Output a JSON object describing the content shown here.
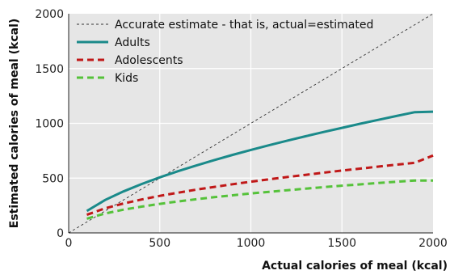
{
  "chart_data": {
    "type": "line",
    "xlabel": "Actual calories of meal (kcal)",
    "ylabel": "Estimated calories of meal (kcal)",
    "xlim": [
      0,
      2000
    ],
    "ylim": [
      0,
      2000
    ],
    "xticks": [
      0,
      500,
      1000,
      1500,
      2000
    ],
    "yticks": [
      0,
      500,
      1000,
      1500,
      2000
    ],
    "grid": true,
    "legend_position": "top-left",
    "background_color": "#e6e6e6",
    "series": [
      {
        "name": "Accurate estimate - that is, actual=estimated",
        "color": "#333333",
        "style": "dashed-thin",
        "x": [
          0,
          2000
        ],
        "y": [
          0,
          2000
        ]
      },
      {
        "name": "Adults",
        "color": "#1a8a8a",
        "style": "solid",
        "x": [
          100,
          200,
          300,
          400,
          500,
          600,
          700,
          800,
          900,
          1000,
          1100,
          1200,
          1300,
          1400,
          1500,
          1600,
          1700,
          1800,
          1900,
          2000
        ],
        "y": [
          200,
          300,
          378,
          446,
          507,
          563,
          615,
          665,
          712,
          757,
          800,
          842,
          882,
          921,
          959,
          996,
          1032,
          1067,
          1102,
          1106
        ]
      },
      {
        "name": "Adolescents",
        "color": "#c01818",
        "style": "dashed",
        "x": [
          100,
          200,
          300,
          400,
          500,
          600,
          700,
          800,
          900,
          1000,
          1100,
          1200,
          1300,
          1400,
          1500,
          1600,
          1700,
          1800,
          1900,
          2000
        ],
        "y": [
          165,
          224,
          268,
          305,
          338,
          367,
          395,
          420,
          444,
          467,
          489,
          510,
          530,
          550,
          569,
          587,
          605,
          623,
          640,
          706
        ]
      },
      {
        "name": "Kids",
        "color": "#55c23a",
        "style": "dashed",
        "x": [
          100,
          200,
          300,
          400,
          500,
          600,
          700,
          800,
          900,
          1000,
          1100,
          1200,
          1300,
          1400,
          1500,
          1600,
          1700,
          1800,
          1900,
          2000
        ],
        "y": [
          130,
          177,
          212,
          240,
          265,
          287,
          307,
          326,
          343,
          360,
          375,
          390,
          404,
          418,
          431,
          443,
          455,
          467,
          478,
          478
        ]
      }
    ]
  }
}
